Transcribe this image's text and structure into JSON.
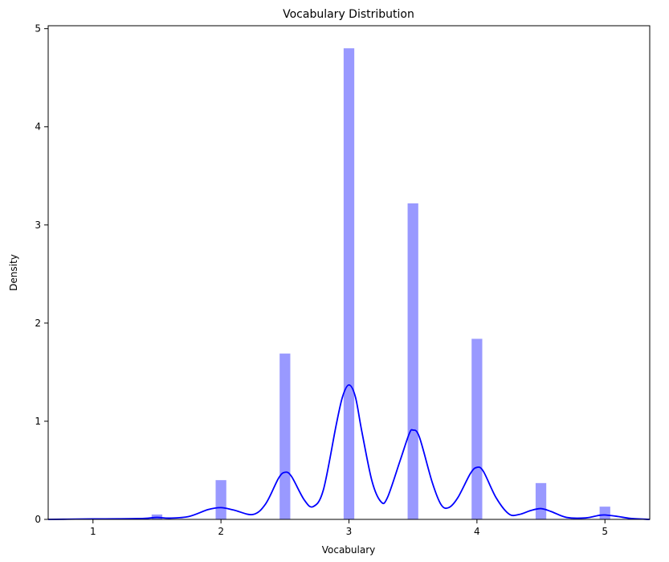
{
  "chart_data": {
    "type": "bar",
    "title": "Vocabulary Distribution",
    "xlabel": "Vocabulary",
    "ylabel": "Density",
    "xlim": [
      0.65,
      5.35
    ],
    "ylim": [
      0,
      5.03
    ],
    "xticks": [
      1,
      2,
      3,
      4,
      5
    ],
    "yticks": [
      0,
      1,
      2,
      3,
      4,
      5
    ],
    "grid": false,
    "colors": {
      "bar": "#0000ff",
      "bar_opacity": 0.4,
      "kde": "#0000ff"
    },
    "histogram": {
      "bin_width": 0.0833,
      "bars": [
        {
          "x": 1.5,
          "density": 0.05
        },
        {
          "x": 2.0,
          "density": 0.4
        },
        {
          "x": 2.5,
          "density": 1.69
        },
        {
          "x": 3.0,
          "density": 4.8
        },
        {
          "x": 3.5,
          "density": 3.22
        },
        {
          "x": 4.0,
          "density": 1.84
        },
        {
          "x": 4.5,
          "density": 0.37
        },
        {
          "x": 5.0,
          "density": 0.13
        }
      ]
    },
    "kde": {
      "x": [
        0.65,
        0.8,
        1.0,
        1.2,
        1.4,
        1.5,
        1.6,
        1.75,
        1.9,
        2.0,
        2.1,
        2.25,
        2.35,
        2.45,
        2.5,
        2.55,
        2.65,
        2.72,
        2.8,
        2.9,
        2.95,
        3.0,
        3.05,
        3.1,
        3.18,
        3.25,
        3.3,
        3.4,
        3.47,
        3.5,
        3.55,
        3.65,
        3.72,
        3.78,
        3.85,
        3.95,
        4.0,
        4.05,
        4.15,
        4.25,
        4.33,
        4.42,
        4.5,
        4.58,
        4.7,
        4.85,
        4.95,
        5.0,
        5.1,
        5.2,
        5.35
      ],
      "y": [
        0.0,
        0.002,
        0.005,
        0.006,
        0.01,
        0.02,
        0.013,
        0.03,
        0.1,
        0.12,
        0.095,
        0.05,
        0.16,
        0.42,
        0.48,
        0.44,
        0.2,
        0.13,
        0.3,
        0.96,
        1.25,
        1.37,
        1.25,
        0.9,
        0.39,
        0.18,
        0.22,
        0.6,
        0.87,
        0.91,
        0.84,
        0.38,
        0.15,
        0.12,
        0.22,
        0.47,
        0.53,
        0.49,
        0.22,
        0.055,
        0.05,
        0.09,
        0.11,
        0.08,
        0.02,
        0.015,
        0.04,
        0.045,
        0.03,
        0.01,
        0.0
      ]
    }
  }
}
